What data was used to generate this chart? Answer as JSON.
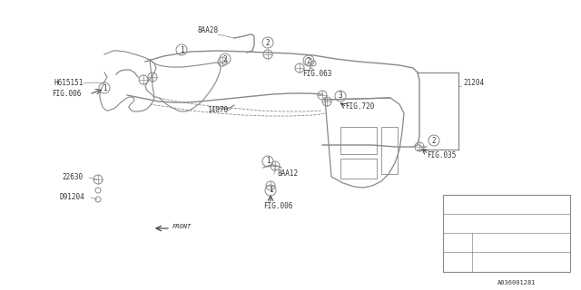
{
  "bg_color": "#ffffff",
  "line_color": "#888888",
  "text_color": "#555555",
  "dark_color": "#333333",
  "part_number": "A036001281",
  "figsize": [
    6.4,
    3.2
  ],
  "dpi": 100,
  "xlim": [
    0,
    640
  ],
  "ylim": [
    0,
    320
  ]
}
